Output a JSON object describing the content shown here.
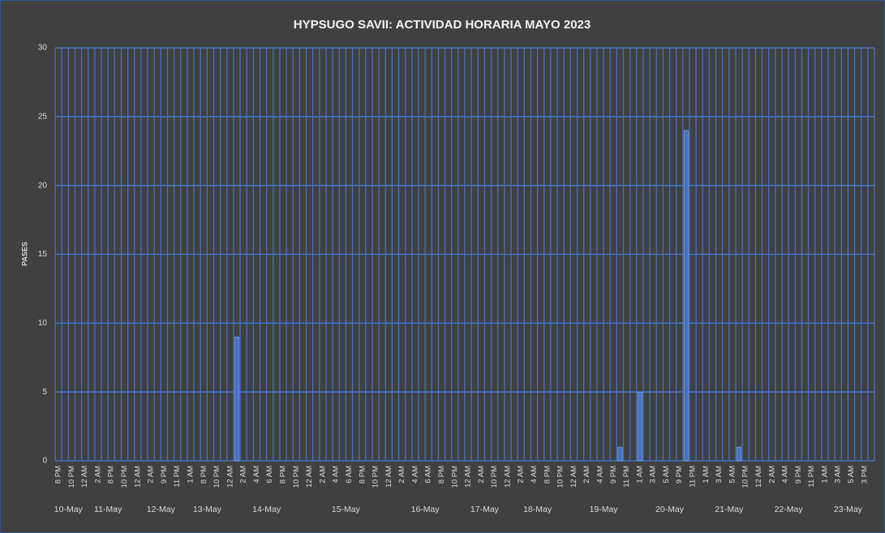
{
  "chart_data": {
    "type": "bar",
    "title": "HYPSUGO SAVII: ACTIVIDAD HORARIA MAYO 2023",
    "y_label": "PASES",
    "ylim": [
      0,
      30
    ],
    "yticks": [
      0,
      5,
      10,
      15,
      20,
      25,
      30
    ],
    "grid": true,
    "color": "#4472c4",
    "groups": [
      {
        "name": "10-May",
        "categories": [
          "8 PM",
          null,
          "10 PM",
          null
        ],
        "values": [
          0,
          0,
          0,
          0
        ]
      },
      {
        "name": "11-May",
        "categories": [
          "12 AM",
          null,
          "2 AM",
          null,
          "8 PM",
          null,
          "10 PM",
          null
        ],
        "values": [
          0,
          0,
          0,
          0,
          0,
          0,
          0,
          0
        ]
      },
      {
        "name": "12-May",
        "categories": [
          "12 AM",
          null,
          "2 AM",
          null,
          "9 PM",
          null,
          "11 PM",
          null
        ],
        "values": [
          0,
          0,
          0,
          0,
          0,
          0,
          0,
          0
        ]
      },
      {
        "name": "13-May",
        "categories": [
          "1 AM",
          null,
          "8 PM",
          null,
          "10 PM",
          null
        ],
        "values": [
          0,
          0,
          0,
          0,
          0,
          0
        ]
      },
      {
        "name": "14-May",
        "categories": [
          "12 AM",
          null,
          "2 AM",
          null,
          "4 AM",
          null,
          "6 AM",
          null,
          "8 PM",
          null,
          "10 PM",
          null
        ],
        "values": [
          0,
          9,
          0,
          0,
          0,
          0,
          0,
          0,
          0,
          0,
          0,
          0
        ]
      },
      {
        "name": "15-May",
        "categories": [
          "12 AM",
          null,
          "2 AM",
          null,
          "4 AM",
          null,
          "6 AM",
          null,
          "8 PM",
          null,
          "10 PM",
          null
        ],
        "values": [
          0,
          0,
          0,
          0,
          0,
          0,
          0,
          0,
          0,
          0,
          0,
          0
        ]
      },
      {
        "name": "16-May",
        "categories": [
          "12 AM",
          null,
          "2 AM",
          null,
          "4 AM",
          null,
          "6 AM",
          null,
          "8 PM",
          null,
          "10 PM",
          null
        ],
        "values": [
          0,
          0,
          0,
          0,
          0,
          0,
          0,
          0,
          0,
          0,
          0,
          0
        ]
      },
      {
        "name": "17-May",
        "categories": [
          "12 AM",
          null,
          "2 AM",
          null,
          "10 PM",
          null
        ],
        "values": [
          0,
          0,
          0,
          0,
          0,
          0
        ]
      },
      {
        "name": "18-May",
        "categories": [
          "12 AM",
          null,
          "2 AM",
          null,
          "4 AM",
          null,
          "8 PM",
          null,
          "10 PM",
          null
        ],
        "values": [
          0,
          0,
          0,
          0,
          0,
          0,
          0,
          0,
          0,
          0
        ]
      },
      {
        "name": "19-May",
        "categories": [
          "12 AM",
          null,
          "2 AM",
          null,
          "4 AM",
          null,
          "9 PM",
          null,
          "11 PM",
          null
        ],
        "values": [
          0,
          0,
          0,
          0,
          0,
          0,
          0,
          1,
          0,
          0
        ]
      },
      {
        "name": "20-May",
        "categories": [
          "1 AM",
          null,
          "3 AM",
          null,
          "5 AM",
          null,
          "9 PM",
          null,
          "11 PM",
          null
        ],
        "values": [
          5,
          0,
          0,
          0,
          0,
          0,
          0,
          24,
          0,
          0
        ]
      },
      {
        "name": "21-May",
        "categories": [
          "1 AM",
          null,
          "3 AM",
          null,
          "5 AM",
          null,
          "10 PM",
          null
        ],
        "values": [
          0,
          0,
          0,
          0,
          0,
          1,
          0,
          0
        ]
      },
      {
        "name": "22-May",
        "categories": [
          "12 AM",
          null,
          "2 AM",
          null,
          "4 AM",
          null,
          "9 PM",
          null,
          "11 PM",
          null
        ],
        "values": [
          0,
          0,
          0,
          0,
          0,
          0,
          0,
          0,
          0,
          0
        ]
      },
      {
        "name": "23-May",
        "categories": [
          "1 AM",
          null,
          "3 AM",
          null,
          "5 AM",
          null,
          "3 PM",
          null
        ],
        "values": [
          0,
          0,
          0,
          0,
          0,
          0,
          0,
          0
        ]
      }
    ]
  }
}
